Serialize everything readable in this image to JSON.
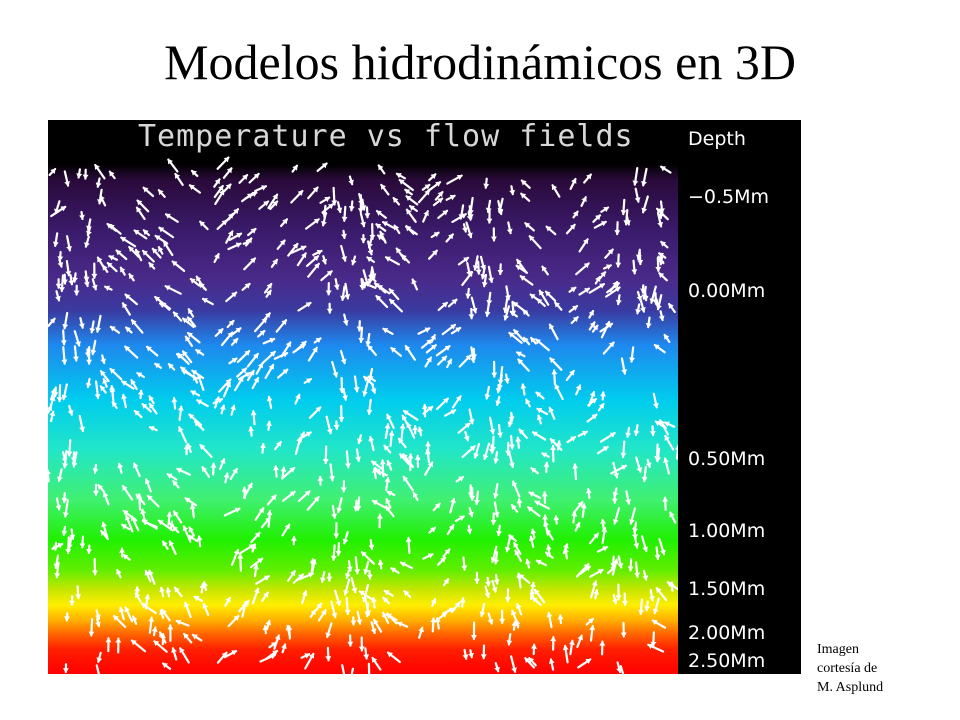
{
  "slide": {
    "title": "Modelos hidrodinámicos en 3D"
  },
  "figure": {
    "title": "Temperature vs flow fields",
    "depth_header": "Depth",
    "depth_labels": [
      "−0.5Mm",
      "0.00Mm",
      "0.50Mm",
      "1.00Mm",
      "1.50Mm",
      "2.00Mm",
      "2.50Mm"
    ],
    "colors": {
      "background": "#000000",
      "arrows": "#ffffff",
      "cool": "#3a1a6a",
      "hot": "#ff0000"
    }
  },
  "credit": {
    "lines": [
      "Imagen",
      "cortesía de",
      "M. Asplund"
    ]
  }
}
